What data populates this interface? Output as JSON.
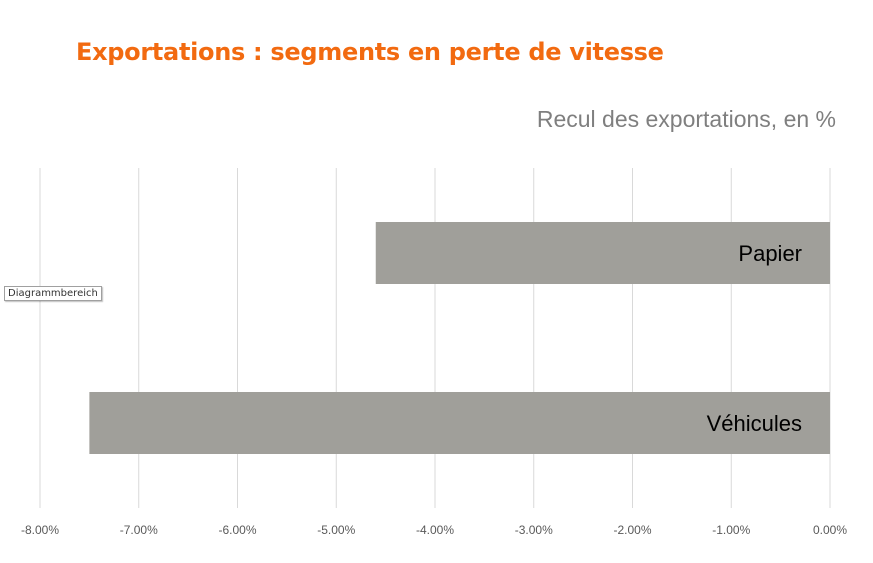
{
  "chart_data": {
    "type": "bar",
    "orientation": "horizontal",
    "title": "Exportations : segments en perte de vitesse",
    "subtitle": "Recul des exportations, en %",
    "categories": [
      "Papier",
      "Véhicules"
    ],
    "values": [
      -4.6,
      -7.5
    ],
    "xlim": [
      -8,
      0
    ],
    "x_ticks": [
      -8,
      -7,
      -6,
      -5,
      -4,
      -3,
      -2,
      -1,
      0
    ],
    "x_tick_labels": [
      "-8.00%",
      "-7.00%",
      "-6.00%",
      "-5.00%",
      "-4.00%",
      "-3.00%",
      "-2.00%",
      "-1.00%",
      "0.00%"
    ],
    "grid": true,
    "legend": "none",
    "bar_color": "#a09f9a",
    "gridline_color": "#d9d9d9",
    "title_color": "#f26a10"
  },
  "ui": {
    "tooltip": "Diagrammbereich"
  }
}
